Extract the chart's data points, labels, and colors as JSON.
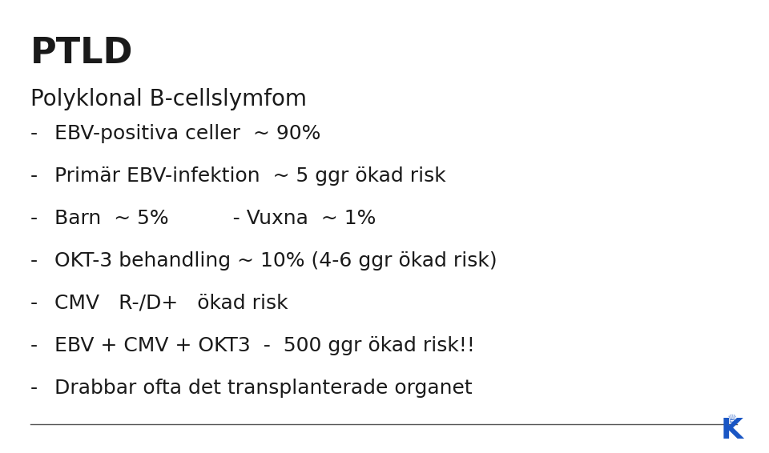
{
  "title": "PTLD",
  "subtitle": "Polyklonal B-cellslymfom",
  "bullet_lines": [
    "EBV-positiva celler  ~ 90%",
    "Primär EBV-infektion  ~ 5 ggr ökad risk",
    "Barn  ~ 5%          - Vuxna  ~ 1%",
    "OKT-3 behandling ~ 10% (4-6 ggr ökad risk)",
    "CMV   R-/D+   ökad risk",
    "EBV + CMV + OKT3  -  500 ggr ökad risk!!",
    "Drabbar ofta det transplanterade organet"
  ],
  "bg_color": "#ffffff",
  "text_color": "#1a1a1a",
  "title_fontsize": 32,
  "subtitle_fontsize": 20,
  "bullet_fontsize": 18,
  "title_bold": true,
  "logo_color": "#1a56c4",
  "line_color": "#555555",
  "font_family": "DejaVu Sans"
}
